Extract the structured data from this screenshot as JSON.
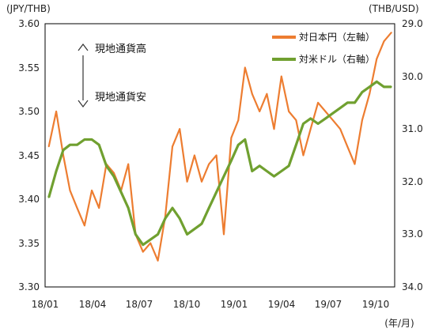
{
  "chart_data": {
    "type": "line",
    "title": "",
    "y_left_unit": "(JPY/THB)",
    "y_right_unit": "(THB/USD)",
    "x_unit": "(年/月)",
    "x_ticks": [
      "18/01",
      "18/04",
      "18/07",
      "18/10",
      "19/01",
      "19/04",
      "19/07",
      "19/10"
    ],
    "y_left_ticks": [
      "3.30",
      "3.35",
      "3.40",
      "3.45",
      "3.50",
      "3.55",
      "3.60"
    ],
    "y_right_ticks": [
      "29.0",
      "30.0",
      "31.0",
      "32.0",
      "33.0",
      "34.0"
    ],
    "y_left_range": [
      3.3,
      3.6
    ],
    "y_right_range": [
      34.0,
      29.0
    ],
    "y_right_inverted": true,
    "grid": false,
    "legend_position": "top-right",
    "annotation_up": "現地通貨高",
    "annotation_down": "現地通貨安",
    "series": [
      {
        "name": "対日本円（左軸）",
        "axis": "left",
        "color": "#ED7D31",
        "x": [
          "2018-01",
          "2018-01",
          "2018-02",
          "2018-02",
          "2018-03",
          "2018-03",
          "2018-04",
          "2018-04",
          "2018-05",
          "2018-05",
          "2018-06",
          "2018-06",
          "2018-07",
          "2018-07",
          "2018-08",
          "2018-08",
          "2018-09",
          "2018-09",
          "2018-10",
          "2018-10",
          "2018-11",
          "2018-11",
          "2018-12",
          "2018-12",
          "2019-01",
          "2019-01",
          "2019-02",
          "2019-02",
          "2019-03",
          "2019-03",
          "2019-04",
          "2019-04",
          "2019-05",
          "2019-05",
          "2019-06",
          "2019-06",
          "2019-07",
          "2019-07",
          "2019-08",
          "2019-08",
          "2019-09",
          "2019-09",
          "2019-10",
          "2019-10",
          "2019-11",
          "2019-11",
          "2019-12",
          "2019-12"
        ],
        "values": [
          3.46,
          3.5,
          3.45,
          3.41,
          3.39,
          3.37,
          3.41,
          3.39,
          3.44,
          3.43,
          3.41,
          3.44,
          3.36,
          3.34,
          3.35,
          3.33,
          3.38,
          3.46,
          3.48,
          3.42,
          3.45,
          3.42,
          3.44,
          3.45,
          3.36,
          3.47,
          3.49,
          3.55,
          3.52,
          3.5,
          3.52,
          3.48,
          3.54,
          3.5,
          3.49,
          3.45,
          3.48,
          3.51,
          3.5,
          3.49,
          3.48,
          3.46,
          3.44,
          3.49,
          3.52,
          3.56,
          3.58,
          3.59
        ]
      },
      {
        "name": "対米ドル（右軸）",
        "axis": "right",
        "color": "#70A030",
        "x": [
          "2018-01",
          "2018-01",
          "2018-02",
          "2018-02",
          "2018-03",
          "2018-03",
          "2018-04",
          "2018-04",
          "2018-05",
          "2018-05",
          "2018-06",
          "2018-06",
          "2018-07",
          "2018-07",
          "2018-08",
          "2018-08",
          "2018-09",
          "2018-09",
          "2018-10",
          "2018-10",
          "2018-11",
          "2018-11",
          "2018-12",
          "2018-12",
          "2019-01",
          "2019-01",
          "2019-02",
          "2019-02",
          "2019-03",
          "2019-03",
          "2019-04",
          "2019-04",
          "2019-05",
          "2019-05",
          "2019-06",
          "2019-06",
          "2019-07",
          "2019-07",
          "2019-08",
          "2019-08",
          "2019-09",
          "2019-09",
          "2019-10",
          "2019-10",
          "2019-11",
          "2019-11",
          "2019-12",
          "2019-12"
        ],
        "values": [
          32.3,
          31.8,
          31.4,
          31.3,
          31.3,
          31.2,
          31.2,
          31.3,
          31.7,
          31.9,
          32.2,
          32.5,
          33.0,
          33.2,
          33.1,
          33.0,
          32.7,
          32.5,
          32.7,
          33.0,
          32.9,
          32.8,
          32.5,
          32.2,
          31.9,
          31.6,
          31.3,
          31.2,
          31.8,
          31.7,
          31.8,
          31.9,
          31.8,
          31.7,
          31.3,
          30.9,
          30.8,
          30.9,
          30.8,
          30.7,
          30.6,
          30.5,
          30.5,
          30.3,
          30.2,
          30.1,
          30.2,
          30.2
        ]
      }
    ]
  }
}
